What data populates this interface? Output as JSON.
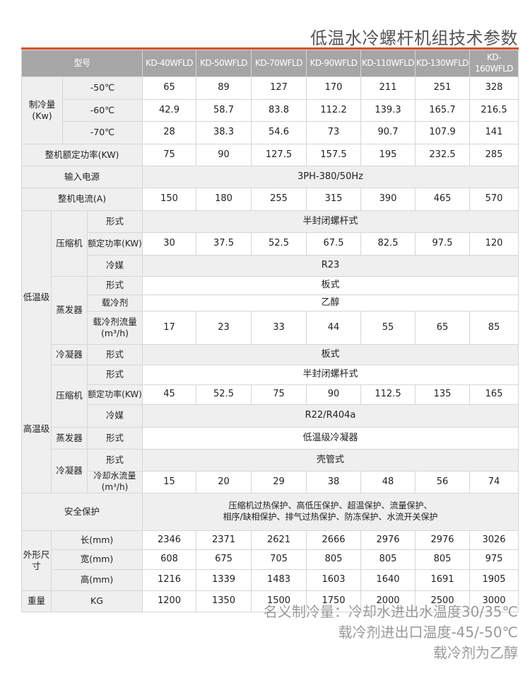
{
  "title": "低温水冷螺杆机组技术参数",
  "header": {
    "label": "型号",
    "models": [
      "KD-40WFLD",
      "KD-50WFLD",
      "KD-70WFLD",
      "KD-90WFLD",
      "KD-110WFLD",
      "KD-130WFLD",
      "KD-160WFLD"
    ]
  },
  "cooling": {
    "label": "制冷量(Kw)",
    "rows": [
      {
        "temp": "-50℃",
        "values": [
          "65",
          "89",
          "127",
          "170",
          "211",
          "251",
          "328"
        ]
      },
      {
        "temp": "-60℃",
        "values": [
          "42.9",
          "58.7",
          "83.8",
          "112.2",
          "139.3",
          "165.7",
          "216.5"
        ]
      },
      {
        "temp": "-70℃",
        "values": [
          "28",
          "38.3",
          "54.6",
          "73",
          "90.7",
          "107.9",
          "141"
        ]
      }
    ]
  },
  "rated_power": {
    "label": "整机额定功率(KW)",
    "values": [
      "75",
      "90",
      "127.5",
      "157.5",
      "195",
      "232.5",
      "285"
    ]
  },
  "power_supply": {
    "label": "输入电源",
    "value": "3PH-380/50Hz"
  },
  "current": {
    "label": "整机电流(A)",
    "values": [
      "150",
      "180",
      "255",
      "315",
      "390",
      "465",
      "570"
    ]
  },
  "low_stage": {
    "label": "低温级",
    "compressor": {
      "label": "压缩机",
      "type_label": "形式",
      "type": "半封闭螺杆式",
      "power_label": "额定功率(KW)",
      "power_values": [
        "30",
        "37.5",
        "52.5",
        "67.5",
        "82.5",
        "97.5",
        "120"
      ],
      "refrigerant_label": "冷媒",
      "refrigerant": "R23"
    },
    "evaporator": {
      "label": "蒸发器",
      "type_label": "形式",
      "type": "板式",
      "coolant_label": "载冷剂",
      "coolant": "乙醇",
      "flow_label": "载冷剂流量\n(m³/h)",
      "flow_values": [
        "17",
        "23",
        "33",
        "44",
        "55",
        "65",
        "85"
      ]
    },
    "condenser": {
      "label": "冷凝器",
      "type_label": "形式",
      "type": "板式"
    }
  },
  "high_stage": {
    "label": "高温级",
    "compressor": {
      "label": "压缩机",
      "type_label": "形式",
      "type": "半封闭螺杆式",
      "power_label": "额定功率(KW)",
      "power_values": [
        "45",
        "52.5",
        "75",
        "90",
        "112.5",
        "135",
        "165"
      ],
      "refrigerant_label": "冷媒",
      "refrigerant": "R22/R404a"
    },
    "evaporator": {
      "label": "蒸发器",
      "type_label": "形式",
      "type": "低温级冷凝器"
    },
    "condenser": {
      "label": "冷凝器",
      "type_label": "形式",
      "type": "壳管式",
      "flow_label": "冷却水流量(m³/h)",
      "flow_values": [
        "15",
        "20",
        "29",
        "38",
        "48",
        "56",
        "74"
      ]
    }
  },
  "safety": {
    "label": "安全保护",
    "text": "压缩机过热保护、高低压保护、超温保护、流量保护、\n相序/缺相保护、排气过热保护、防冻保护、水流开关保护"
  },
  "dimensions": {
    "label": "外形尺寸",
    "rows": [
      {
        "label": "长(mm)",
        "values": [
          "2346",
          "2371",
          "2621",
          "2666",
          "2976",
          "2976",
          "3026"
        ]
      },
      {
        "label": "宽(mm)",
        "values": [
          "608",
          "675",
          "705",
          "805",
          "805",
          "805",
          "975"
        ]
      },
      {
        "label": "高(mm)",
        "values": [
          "1216",
          "1339",
          "1483",
          "1603",
          "1640",
          "1691",
          "1905"
        ]
      }
    ]
  },
  "weight": {
    "label": "重量",
    "unit": "KG",
    "values": [
      "1200",
      "1350",
      "1500",
      "1750",
      "2000",
      "2500",
      "3000"
    ]
  },
  "notes": [
    "名义制冷量：冷却水进出水温度30/35℃",
    "载冷剂进出口温度-45/-50℃",
    "载冷剂为乙醇"
  ],
  "colors": {
    "accent_line": "#d9512c",
    "header_bg": "#a6a6a6",
    "label_bg": "#efefef"
  }
}
